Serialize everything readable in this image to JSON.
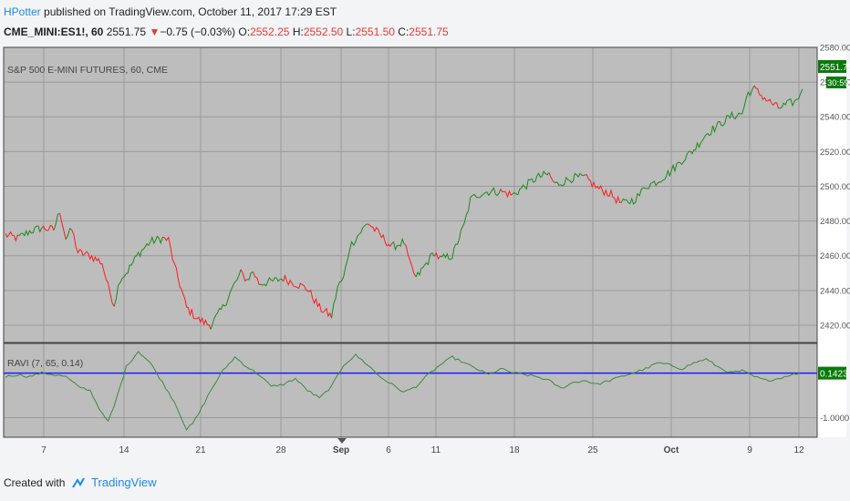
{
  "header": {
    "author": "HPotter",
    "published_text": "published on TradingView.com, October 11, 2017 17:29 EST",
    "symbol_line": "CME_MINI:ES1!, 60",
    "last": "2551.75",
    "change_arrow": "▼",
    "change": "−0.75 (−0.03%)",
    "o_label": "O:",
    "o_value": "2552.25",
    "h_label": "H:",
    "h_value": "2552.50",
    "l_label": "L:",
    "l_value": "2551.50",
    "c_label": "C:",
    "c_value": "2551.75"
  },
  "footer": {
    "created_with": "Created with",
    "brand": "TradingView"
  },
  "colors": {
    "up": "#1b8a1b",
    "down": "#ff1a1a",
    "ravi_line": "#3c8a3c",
    "level_line": "#1a1aff",
    "pane_bg": "#bdbdbd",
    "price_badge": "#0a7a0a"
  },
  "chart_data": [
    {
      "type": "line",
      "title": "S&P 500 E-MINI FUTURES, 60, CME",
      "ylim": [
        2410,
        2580
      ],
      "y_ticks": [
        "2420.00",
        "2440.00",
        "2460.00",
        "2480.00",
        "2500.00",
        "2520.00",
        "2540.00",
        "2560.00",
        "2580.00"
      ],
      "x_ticks": [
        "7",
        "14",
        "21",
        "28",
        "Sep",
        "6",
        "11",
        "18",
        "25",
        "Oct",
        "9",
        "12"
      ],
      "last_price_label": "2551.75",
      "countdown_label": "30:59",
      "series": [
        {
          "x": [
            0,
            1,
            2,
            3,
            4,
            4.5,
            5,
            5.5,
            6,
            7,
            8,
            8.5,
            9,
            9.5,
            10,
            11,
            12,
            13,
            13.5,
            14,
            15,
            16,
            17,
            18,
            19,
            19.5,
            20,
            20.5,
            21,
            22,
            23,
            24,
            25,
            26,
            27,
            27.5,
            28,
            28.5,
            29,
            30,
            31,
            32,
            33,
            33.5,
            34,
            35,
            35.5,
            36,
            37,
            38,
            38.5,
            39,
            40,
            41,
            42,
            43,
            44,
            45,
            45.5,
            46,
            47,
            48,
            49,
            50,
            51,
            52,
            52.5,
            53,
            54,
            55,
            56,
            57,
            58,
            59,
            60,
            61,
            61.5,
            62,
            63,
            64,
            65,
            65.5,
            66
          ],
          "values": [
            2472,
            2470,
            2474,
            2476,
            2475,
            2486,
            2470,
            2475,
            2462,
            2460,
            2456,
            2442,
            2432,
            2447,
            2450,
            2461,
            2468,
            2470,
            2469,
            2454,
            2430,
            2423,
            2420,
            2430,
            2444,
            2450,
            2446,
            2451,
            2444,
            2445,
            2447,
            2444,
            2441,
            2430,
            2425,
            2442,
            2447,
            2465,
            2470,
            2479,
            2472,
            2465,
            2468,
            2455,
            2447,
            2457,
            2462,
            2458,
            2460,
            2478,
            2492,
            2495,
            2497,
            2497,
            2495,
            2500,
            2505,
            2507,
            2501,
            2502,
            2505,
            2505,
            2499,
            2496,
            2490,
            2492,
            2495,
            2500,
            2503,
            2508,
            2515,
            2521,
            2530,
            2535,
            2540,
            2542,
            2554,
            2556,
            2550,
            2545,
            2548,
            2549,
            2556
          ]
        }
      ]
    },
    {
      "type": "line",
      "title": "RAVI (7, 65, 0.14)",
      "ylim": [
        -1.5,
        0.9
      ],
      "y_ticks": [
        "-1.0000"
      ],
      "level": 0.14,
      "level_label": "0.1423",
      "series": [
        {
          "x": [
            0,
            1,
            2,
            3,
            4,
            5,
            6,
            7,
            8,
            8.5,
            9,
            10,
            11,
            12,
            13,
            14,
            15,
            15.5,
            16,
            17,
            18,
            19,
            20,
            21,
            22,
            23,
            24,
            25,
            26,
            27,
            28,
            29,
            30,
            31,
            32,
            33,
            34,
            35,
            36,
            37,
            38,
            39,
            40,
            41,
            42,
            43,
            44,
            45,
            46,
            47,
            48,
            49,
            50,
            51,
            52,
            53,
            54,
            55,
            56,
            57,
            58,
            59,
            60,
            61,
            62,
            63,
            64,
            65,
            66
          ],
          "values": [
            0.05,
            0.1,
            0.05,
            0.15,
            0.1,
            0.05,
            -0.2,
            -0.3,
            -0.9,
            -1.1,
            -0.7,
            0.3,
            0.7,
            0.4,
            -0.1,
            -0.6,
            -1.3,
            -1.15,
            -0.9,
            -0.3,
            0.2,
            0.55,
            0.3,
            0.1,
            -0.2,
            -0.15,
            0.0,
            -0.3,
            -0.5,
            -0.2,
            0.35,
            0.6,
            0.35,
            0.05,
            -0.15,
            -0.35,
            -0.2,
            0.1,
            0.35,
            0.55,
            0.4,
            0.25,
            0.1,
            0.25,
            0.15,
            0.1,
            0.05,
            -0.05,
            -0.25,
            -0.1,
            -0.05,
            -0.15,
            -0.05,
            0.05,
            0.15,
            0.25,
            0.4,
            0.35,
            0.25,
            0.4,
            0.5,
            0.3,
            0.15,
            0.2,
            0.05,
            -0.05,
            0.0,
            0.1,
            0.14
          ]
        }
      ]
    }
  ]
}
